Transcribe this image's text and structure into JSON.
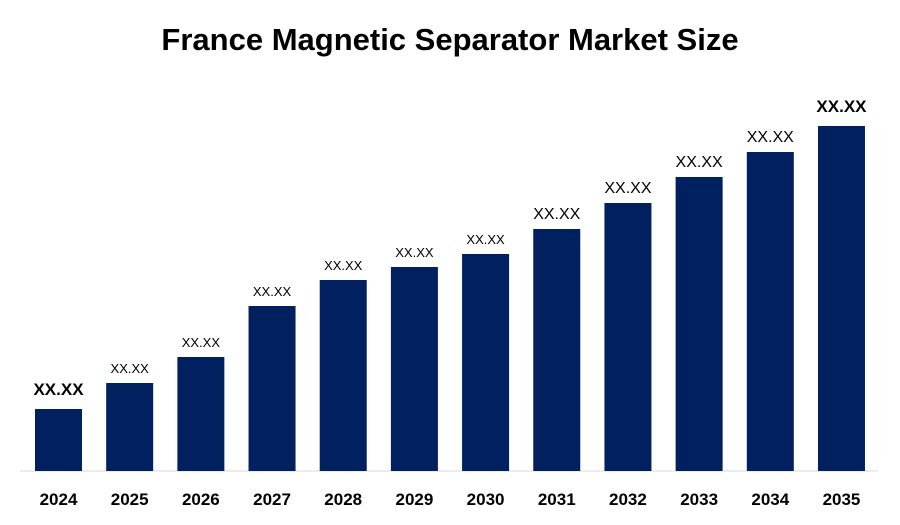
{
  "chart_data": {
    "type": "bar",
    "title": "France Magnetic Separator Market Size",
    "xlabel": "",
    "ylabel": "",
    "categories": [
      "2024",
      "2025",
      "2026",
      "2027",
      "2028",
      "2029",
      "2030",
      "2031",
      "2032",
      "2033",
      "2034",
      "2035"
    ],
    "values": [
      62,
      88,
      114,
      165,
      191,
      204,
      217,
      242,
      268,
      294,
      319,
      345
    ],
    "data_labels": [
      "XX.XX",
      "XX.XX",
      "XX.XX",
      "XX.XX",
      "XX.XX",
      "XX.XX",
      "XX.XX",
      "XX.XX",
      "XX.XX",
      "XX.XX",
      "XX.XX",
      "XX.XX"
    ],
    "bar_color": "#002060",
    "grid": false,
    "legend": "none"
  }
}
